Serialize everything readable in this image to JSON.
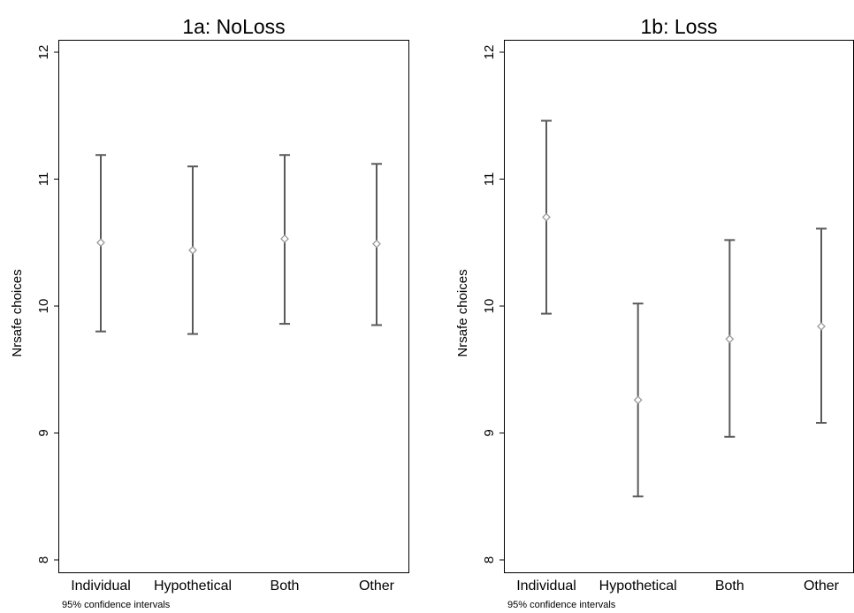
{
  "chart_data": [
    {
      "type": "errorbar",
      "title": "1a: NoLoss",
      "ylabel": "Nrsafe choices",
      "xlabel": "",
      "note": "95% confidence intervals",
      "categories": [
        "Individual",
        "Hypothetical",
        "Both",
        "Other"
      ],
      "means": [
        10.5,
        10.44,
        10.53,
        10.49
      ],
      "lower": [
        9.8,
        9.78,
        9.86,
        9.85
      ],
      "upper": [
        11.19,
        11.1,
        11.19,
        11.12
      ],
      "ylim": [
        8,
        12
      ],
      "yticks": [
        "8",
        "9",
        "10",
        "11",
        "12"
      ],
      "grid": false
    },
    {
      "type": "errorbar",
      "title": "1b: Loss",
      "ylabel": "Nrsafe choices",
      "xlabel": "",
      "note": "95% confidence intervals",
      "categories": [
        "Individual",
        "Hypothetical",
        "Both",
        "Other"
      ],
      "means": [
        10.7,
        9.26,
        9.74,
        9.84
      ],
      "lower": [
        9.94,
        8.5,
        8.97,
        9.08
      ],
      "upper": [
        11.46,
        10.02,
        10.52,
        10.61
      ],
      "ylim": [
        8,
        12
      ],
      "yticks": [
        "8",
        "9",
        "10",
        "11",
        "12"
      ],
      "grid": false
    }
  ],
  "colors": {
    "frame": "#000000",
    "errorbar": "#5a5a5a",
    "marker": "#9a9a9a",
    "text": "#000000"
  }
}
